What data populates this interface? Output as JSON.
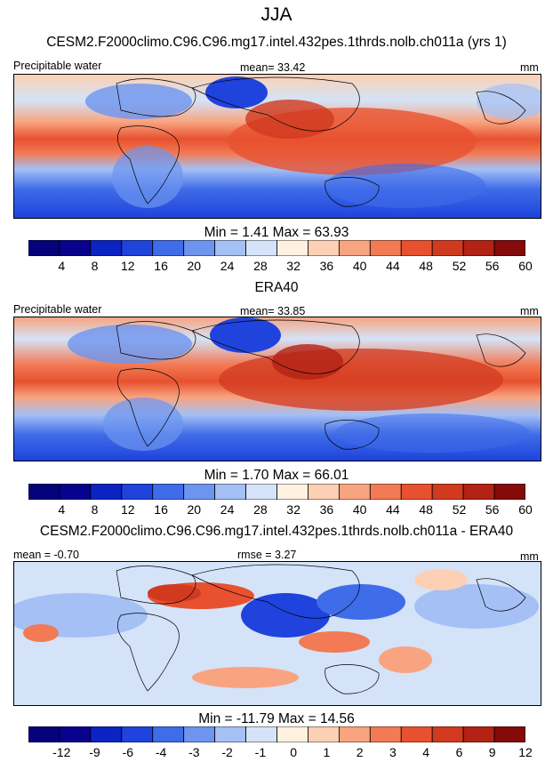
{
  "page_title": "JJA",
  "panels": [
    {
      "title": "CESM2.F2000climo.C96.C96.mg17.intel.432pes.1thrds.nolb.ch011a (yrs 1)",
      "left_label": "Precipitable water",
      "center_label": "mean=  33.42",
      "right_label": "mm",
      "minmax": "Min =   1.41 Max =  63.93",
      "ticks": [
        "4",
        "8",
        "12",
        "16",
        "20",
        "24",
        "28",
        "32",
        "36",
        "40",
        "44",
        "48",
        "52",
        "56",
        "60"
      ],
      "palette": "full"
    },
    {
      "title": "ERA40",
      "left_label": "Precipitable water",
      "center_label": "mean=  33.85",
      "right_label": "mm",
      "minmax": "Min =   1.70 Max =  66.01",
      "ticks": [
        "4",
        "8",
        "12",
        "16",
        "20",
        "24",
        "28",
        "32",
        "36",
        "40",
        "44",
        "48",
        "52",
        "56",
        "60"
      ],
      "palette": "full"
    },
    {
      "title": "CESM2.F2000climo.C96.C96.mg17.intel.432pes.1thrds.nolb.ch011a - ERA40",
      "left_label": "mean = -0.70",
      "center_label": "rmse =  3.27",
      "right_label": "mm",
      "minmax": "Min = -11.79 Max =  14.56",
      "ticks": [
        "-12",
        "-9",
        "-6",
        "-4",
        "-3",
        "-2",
        "-1",
        "0",
        "1",
        "2",
        "3",
        "4",
        "6",
        "9",
        "12"
      ],
      "palette": "diff"
    }
  ],
  "chart_data": [
    {
      "type": "heatmap",
      "title": "CESM2.F2000climo.C96.C96.mg17.intel.432pes.1thrds.nolb.ch011a (yrs 1)",
      "variable": "Precipitable water",
      "units": "mm",
      "mean": 33.42,
      "min": 1.41,
      "max": 63.93,
      "contour_levels": [
        4,
        8,
        12,
        16,
        20,
        24,
        28,
        32,
        36,
        40,
        44,
        48,
        52,
        56,
        60
      ]
    },
    {
      "type": "heatmap",
      "title": "ERA40",
      "variable": "Precipitable water",
      "units": "mm",
      "mean": 33.85,
      "min": 1.7,
      "max": 66.01,
      "contour_levels": [
        4,
        8,
        12,
        16,
        20,
        24,
        28,
        32,
        36,
        40,
        44,
        48,
        52,
        56,
        60
      ]
    },
    {
      "type": "heatmap",
      "title": "CESM2.F2000climo.C96.C96.mg17.intel.432pes.1thrds.nolb.ch011a - ERA40",
      "units": "mm",
      "mean": -0.7,
      "rmse": 3.27,
      "min": -11.79,
      "max": 14.56,
      "contour_levels": [
        -12,
        -9,
        -6,
        -4,
        -3,
        -2,
        -1,
        0,
        1,
        2,
        3,
        4,
        6,
        9,
        12
      ]
    }
  ],
  "colors": {
    "scale": [
      "#08038c",
      "#0c23c4",
      "#1f43dc",
      "#3f6ce8",
      "#6d95f0",
      "#a4c0f5",
      "#d4e3f8",
      "#fff0e0",
      "#fcd0b4",
      "#f8a480",
      "#f27a54",
      "#e8512f",
      "#d13a1f",
      "#b32214",
      "#850a0a"
    ]
  }
}
